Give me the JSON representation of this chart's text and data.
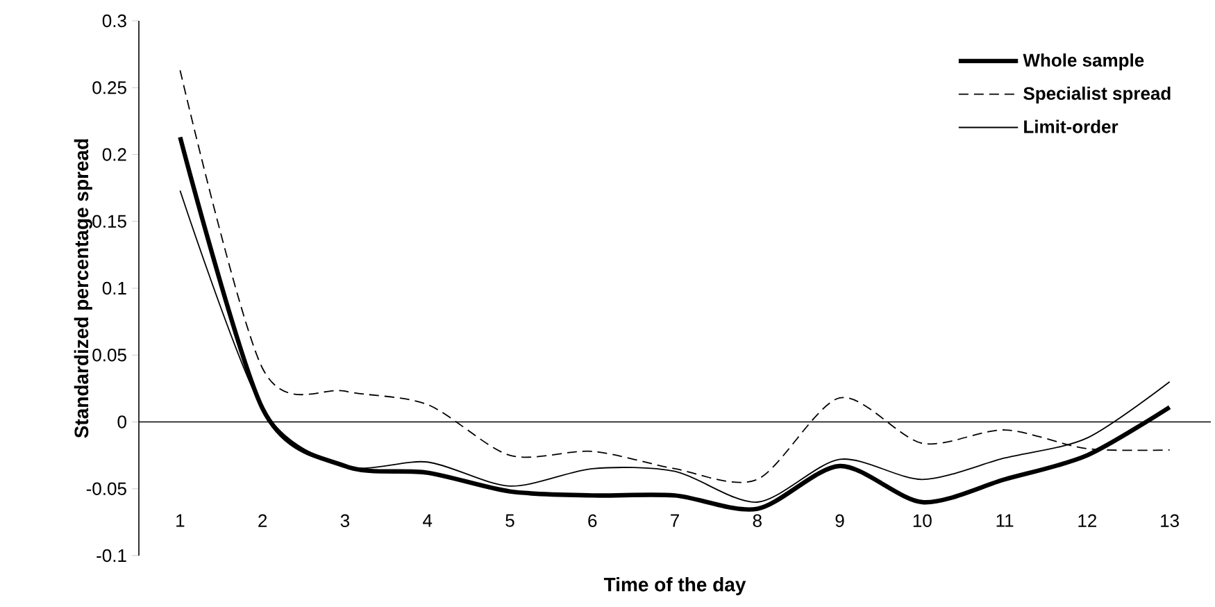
{
  "chart_data": {
    "type": "line",
    "xlabel": "Time of the day",
    "ylabel": "Standardized percentage spread",
    "categories": [
      "1",
      "2",
      "3",
      "4",
      "5",
      "6",
      "7",
      "8",
      "9",
      "10",
      "11",
      "12",
      "13"
    ],
    "series": [
      {
        "name": "Whole sample",
        "color": "#000000",
        "line_style": "solid",
        "values": [
          0.213,
          0.01,
          -0.033,
          -0.038,
          -0.052,
          -0.055,
          -0.055,
          -0.065,
          -0.033,
          -0.06,
          -0.043,
          -0.025,
          0.011
        ]
      },
      {
        "name": "Specialist spread",
        "color": "#000000",
        "line_style": "dashed",
        "values": [
          0.263,
          0.04,
          0.023,
          0.013,
          -0.025,
          -0.022,
          -0.035,
          -0.043,
          0.018,
          -0.016,
          -0.006,
          -0.02,
          -0.021
        ]
      },
      {
        "name": "Limit-order",
        "color": "#000000",
        "line_style": "solid",
        "values": [
          0.173,
          0.01,
          -0.033,
          -0.03,
          -0.048,
          -0.035,
          -0.037,
          -0.06,
          -0.028,
          -0.043,
          -0.027,
          -0.012,
          0.03
        ]
      }
    ],
    "ylim": [
      -0.1,
      0.3
    ],
    "yticks": [
      -0.1,
      -0.05,
      0,
      0.05,
      0.1,
      0.15,
      0.2,
      0.25,
      0.3
    ],
    "legend": "top right",
    "marker": "none"
  }
}
